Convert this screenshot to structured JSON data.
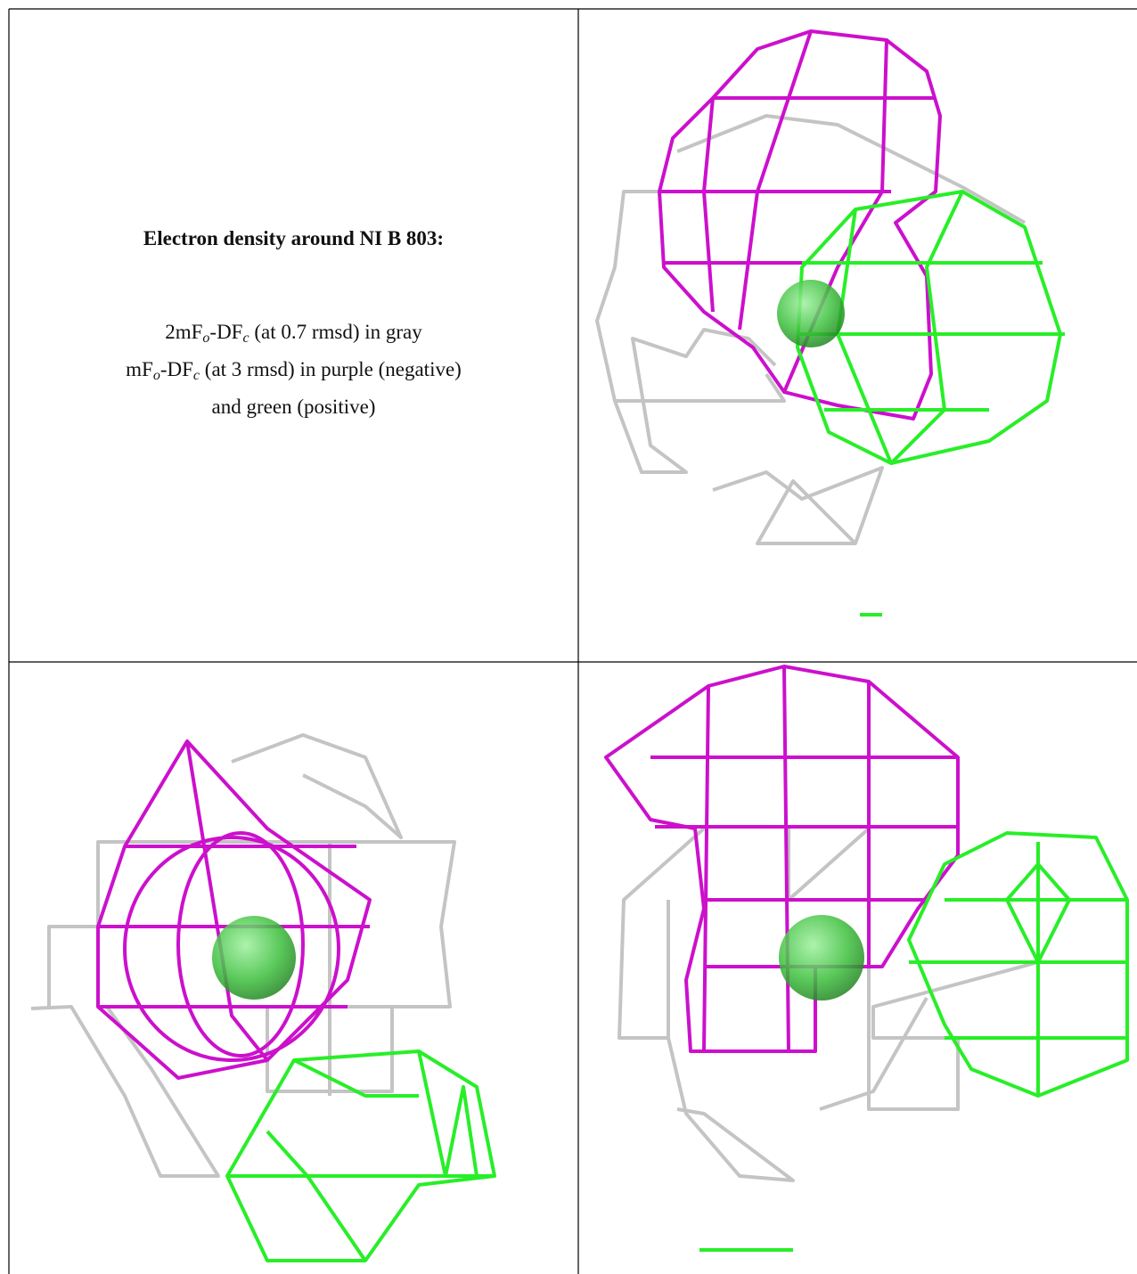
{
  "figure": {
    "title": "Electron density around NI B 803:",
    "legend_lines": [
      [
        "2mF",
        "o",
        "-DF",
        "c",
        " (at 0.7 rmsd) in gray"
      ],
      [
        "mF",
        "o",
        "-DF",
        "c",
        " (at 3 rmsd) in purple (negative)"
      ],
      [
        "and green (positive)"
      ]
    ]
  }
}
